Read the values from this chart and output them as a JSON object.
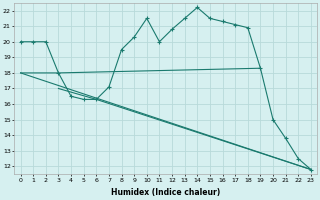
{
  "xlabel": "Humidex (Indice chaleur)",
  "background_color": "#d6f0f0",
  "grid_color": "#b8dada",
  "line_color": "#1a7a6e",
  "xlim": [
    -0.5,
    23.5
  ],
  "ylim": [
    11.5,
    22.5
  ],
  "yticks": [
    12,
    13,
    14,
    15,
    16,
    17,
    18,
    19,
    20,
    21,
    22
  ],
  "xticks": [
    0,
    1,
    2,
    3,
    4,
    5,
    6,
    7,
    8,
    9,
    10,
    11,
    12,
    13,
    14,
    15,
    16,
    17,
    18,
    19,
    20,
    21,
    22,
    23
  ],
  "series": [
    {
      "x": [
        0,
        1,
        2,
        3,
        4,
        5,
        6,
        7,
        8,
        9,
        10,
        11,
        12,
        13,
        14,
        15,
        16,
        17,
        18,
        19,
        20,
        21,
        22,
        23
      ],
      "y": [
        20.0,
        20.0,
        20.0,
        18.0,
        16.5,
        16.3,
        16.3,
        17.1,
        19.5,
        20.3,
        21.5,
        20.0,
        20.8,
        21.5,
        22.2,
        21.5,
        21.3,
        21.1,
        20.9,
        18.3,
        15.0,
        13.8,
        12.5,
        11.8
      ],
      "marker": true
    },
    {
      "x": [
        0,
        3,
        19
      ],
      "y": [
        18.0,
        18.0,
        18.3
      ],
      "marker": false
    },
    {
      "comment": "Line 3: diagonal from (0,18) to (23,11.8)",
      "x": [
        0,
        23
      ],
      "y": [
        18.0,
        11.8
      ],
      "marker": false
    },
    {
      "comment": "Line 4: diagonal from (3,17) through (6,16.3) to (23,11.8)",
      "x": [
        3,
        6,
        23
      ],
      "y": [
        17.0,
        16.3,
        11.8
      ],
      "marker": false
    }
  ]
}
